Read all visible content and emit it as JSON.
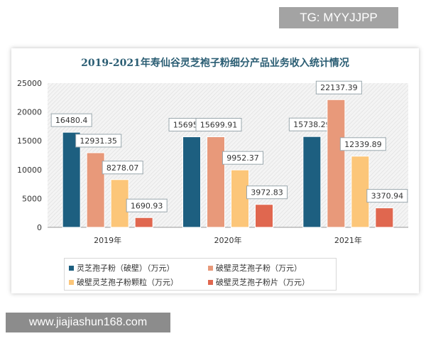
{
  "watermark_top": "TG: MYYJJPP",
  "watermark_bottom": "www.jiajiashun168.com",
  "chart_data": {
    "type": "bar",
    "title": "2019-2021年寿仙谷灵芝袍子粉细分产品业务收入统计情况",
    "categories": [
      "2019年",
      "2020年",
      "2021年"
    ],
    "series": [
      {
        "name": "灵芝孢子粉（破壁）（万元）",
        "color": "#1d5f80",
        "values": [
          16480.4,
          15695.07,
          15738.29
        ],
        "labels": [
          "16480.4",
          "15695.07",
          "15738.29"
        ]
      },
      {
        "name": "破壁灵芝孢子粉（万元）",
        "color": "#e8997a",
        "values": [
          12931.35,
          15699.91,
          22137.39
        ],
        "labels": [
          "12931.35",
          "15699.91",
          "22137.39"
        ]
      },
      {
        "name": "破壁灵芝孢子粉颗粒（万元）",
        "color": "#fcc679",
        "values": [
          8278.07,
          9952.37,
          12339.89
        ],
        "labels": [
          "8278.07",
          "9952.37",
          "12339.89"
        ]
      },
      {
        "name": "破壁灵芝孢子粉片（万元）",
        "color": "#e0674f",
        "values": [
          1690.93,
          3972.83,
          3370.94
        ],
        "labels": [
          "1690.93",
          "3972.83",
          "3370.94"
        ]
      }
    ],
    "ylim": [
      0,
      25000
    ],
    "yticks": [
      "0",
      "5000",
      "10000",
      "15000",
      "20000",
      "25000"
    ],
    "xlabel": "",
    "ylabel": "",
    "legend": "bottom",
    "grid": false
  }
}
